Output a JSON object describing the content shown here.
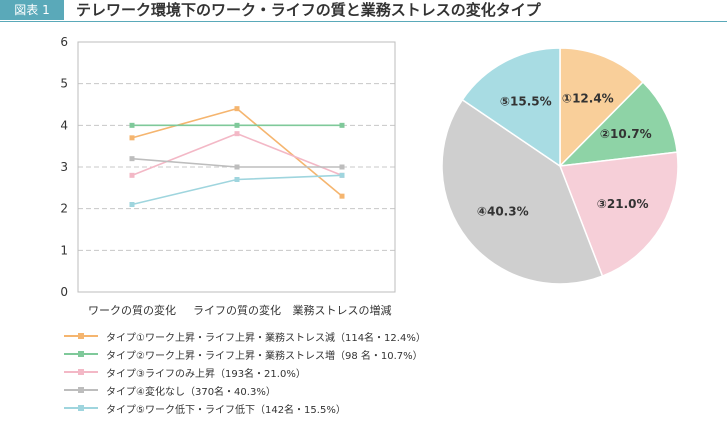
{
  "header": {
    "badge": "図表 1",
    "title": "テレワーク環境下のワーク・ライフの質と業務ストレスの変化タイプ"
  },
  "chart_data": [
    {
      "type": "line",
      "categories": [
        "ワークの質の変化",
        "ライフの質の変化",
        "業務ストレスの増減"
      ],
      "ylim": [
        0,
        6
      ],
      "yticks": [
        0,
        1,
        2,
        3,
        4,
        5,
        6
      ],
      "grid": true,
      "series": [
        {
          "name": "タイプ①ワーク上昇・ライフ上昇・業務ストレス減（114名・12.4%）",
          "color": "#f5b56f",
          "values": [
            3.7,
            4.4,
            2.3
          ]
        },
        {
          "name": "タイプ②ワーク上昇・ライフ上昇・業務ストレス増（98 名・10.7%）",
          "color": "#7fc99a",
          "values": [
            4.0,
            4.0,
            4.0
          ]
        },
        {
          "name": "タイプ③ライフのみ上昇（193名・21.0%）",
          "color": "#f3b8c6",
          "values": [
            2.8,
            3.8,
            2.8
          ]
        },
        {
          "name": "タイプ④変化なし（370名・40.3%）",
          "color": "#bdbdbd",
          "values": [
            3.2,
            3.0,
            3.0
          ]
        },
        {
          "name": "タイプ⑤ワーク低下・ライフ低下（142名・15.5%）",
          "color": "#9fd5de",
          "values": [
            2.1,
            2.7,
            2.8
          ]
        }
      ]
    },
    {
      "type": "pie",
      "slices": [
        {
          "label": "①12.4%",
          "value": 12.4,
          "color": "#f9cf9a"
        },
        {
          "label": "②10.7%",
          "value": 10.7,
          "color": "#8ed3a6"
        },
        {
          "label": "③21.0%",
          "value": 21.0,
          "color": "#f6cfd8"
        },
        {
          "label": "④40.3%",
          "value": 40.3,
          "color": "#cfcfcf"
        },
        {
          "label": "⑤15.5%",
          "value": 15.5,
          "color": "#a8dce3"
        }
      ]
    }
  ]
}
